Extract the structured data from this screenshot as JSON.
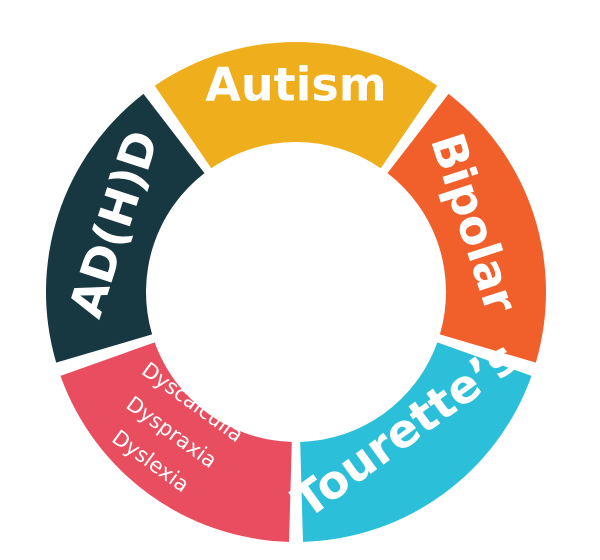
{
  "segments": [
    {
      "id": "autism",
      "label": "Autism",
      "color": "#efae1c"
    },
    {
      "id": "bipolar",
      "label": "Bipolar",
      "color": "#f15f2a"
    },
    {
      "id": "tourettes",
      "label": "Tourette’s",
      "color": "#2cbfd9"
    },
    {
      "id": "learning",
      "lines": [
        "Dyscalculia",
        "Dyspraxia",
        "Dyslexia"
      ],
      "color": "#e84e5f"
    },
    {
      "id": "adhd",
      "label": "AD(H)D",
      "color": "#173841"
    }
  ]
}
